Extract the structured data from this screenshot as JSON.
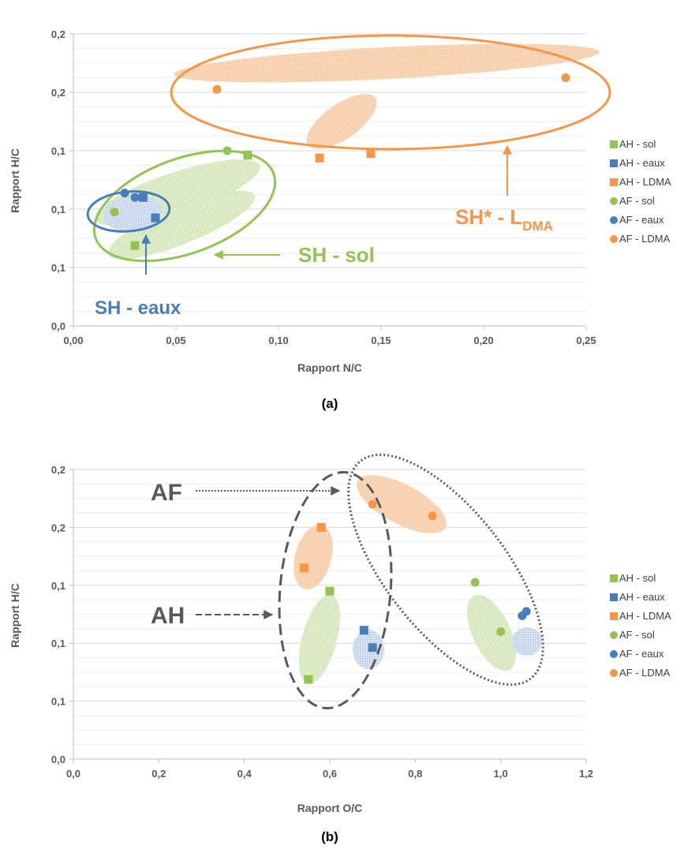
{
  "colors": {
    "ah_sol": "#92c353",
    "ah_eaux": "#4a7ebb",
    "ah_ldma": "#f79646",
    "af_sol": "#92c353",
    "af_eaux": "#4a7ebb",
    "af_ldma": "#f79646",
    "annotation_dark": "#595959",
    "grid": "#e6e6e6"
  },
  "legend": [
    "AH - sol",
    "AH - eaux",
    "AH - LDMA",
    "AF - sol",
    "AF - eaux",
    "AF - LDMA"
  ],
  "chart_data": [
    {
      "type": "scatter",
      "caption": "(a)",
      "xlabel": "Rapport N/C",
      "ylabel": "Rapport H/C",
      "xlim": [
        0,
        0.25
      ],
      "ylim": [
        0,
        0.2
      ],
      "x_ticks": [
        "0,00",
        "0,05",
        "0,10",
        "0,15",
        "0,20",
        "0,25"
      ],
      "y_ticks": [
        "0,0",
        "0,1",
        "0,1",
        "0,1",
        "0,2",
        "0,2"
      ],
      "grid": true,
      "legend_position": "right",
      "series": [
        {
          "name": "AH - sol",
          "marker": "square",
          "color": "#92c353",
          "points": [
            [
              0.03,
              0.055
            ],
            [
              0.085,
              0.117
            ]
          ]
        },
        {
          "name": "AH - eaux",
          "marker": "square",
          "color": "#4a7ebb",
          "points": [
            [
              0.034,
              0.088
            ],
            [
              0.04,
              0.074
            ]
          ]
        },
        {
          "name": "AH - LDMA",
          "marker": "square",
          "color": "#f79646",
          "points": [
            [
              0.12,
              0.115
            ],
            [
              0.145,
              0.118
            ]
          ]
        },
        {
          "name": "AF - sol",
          "marker": "circle",
          "color": "#92c353",
          "points": [
            [
              0.02,
              0.078
            ],
            [
              0.075,
              0.12
            ]
          ]
        },
        {
          "name": "AF - eaux",
          "marker": "circle",
          "color": "#4a7ebb",
          "points": [
            [
              0.025,
              0.091
            ],
            [
              0.03,
              0.088
            ]
          ]
        },
        {
          "name": "AF - LDMA",
          "marker": "circle",
          "color": "#f79646",
          "points": [
            [
              0.07,
              0.162
            ],
            [
              0.24,
              0.17
            ]
          ]
        }
      ],
      "annotations": [
        "SH - eaux",
        "SH - sol",
        "SH* - L",
        "DMA"
      ]
    },
    {
      "type": "scatter",
      "caption": "(b)",
      "xlabel": "Rapport O/C",
      "ylabel": "Rapport H/C",
      "xlim": [
        0,
        1.2
      ],
      "ylim": [
        0,
        0.2
      ],
      "x_ticks": [
        "0,0",
        "0,2",
        "0,4",
        "0,6",
        "0,8",
        "1,0",
        "1,2"
      ],
      "y_ticks": [
        "0,0",
        "0,1",
        "0,1",
        "0,1",
        "0,2",
        "0,2"
      ],
      "grid": true,
      "legend_position": "right",
      "series": [
        {
          "name": "AH - sol",
          "marker": "square",
          "color": "#92c353",
          "points": [
            [
              0.55,
              0.055
            ],
            [
              0.6,
              0.116
            ]
          ]
        },
        {
          "name": "AH - eaux",
          "marker": "square",
          "color": "#4a7ebb",
          "points": [
            [
              0.68,
              0.089
            ],
            [
              0.7,
              0.077
            ]
          ]
        },
        {
          "name": "AH - LDMA",
          "marker": "square",
          "color": "#f79646",
          "points": [
            [
              0.54,
              0.132
            ],
            [
              0.58,
              0.16
            ]
          ]
        },
        {
          "name": "AF - sol",
          "marker": "circle",
          "color": "#92c353",
          "points": [
            [
              0.94,
              0.122
            ],
            [
              1.0,
              0.088
            ]
          ]
        },
        {
          "name": "AF - eaux",
          "marker": "circle",
          "color": "#4a7ebb",
          "points": [
            [
              1.05,
              0.099
            ],
            [
              1.06,
              0.102
            ]
          ]
        },
        {
          "name": "AF - LDMA",
          "marker": "circle",
          "color": "#f79646",
          "points": [
            [
              0.7,
              0.176
            ],
            [
              0.84,
              0.168
            ]
          ]
        }
      ],
      "annotations": [
        "AF",
        "AH"
      ]
    }
  ]
}
